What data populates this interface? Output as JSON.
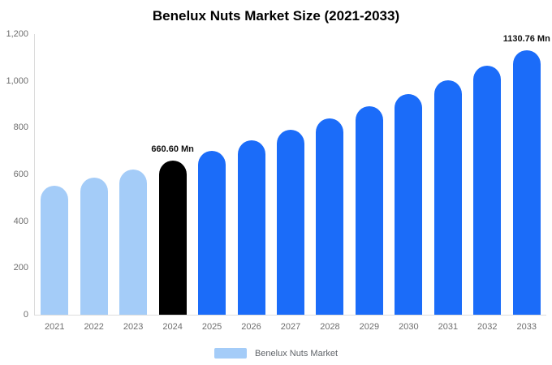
{
  "title": "Benelux Nuts Market Size (2021-2033)",
  "legend": {
    "label": "Benelux Nuts Market",
    "swatch_color": "#a4ccf8"
  },
  "colors": {
    "light_blue": "#a4ccf8",
    "blue": "#1b6cf9",
    "black": "#000000"
  },
  "chart_data": {
    "type": "bar",
    "title": "Benelux Nuts Market Size (2021-2033)",
    "categories": [
      "2021",
      "2022",
      "2023",
      "2024",
      "2025",
      "2026",
      "2027",
      "2028",
      "2029",
      "2030",
      "2031",
      "2032",
      "2033"
    ],
    "values": [
      552,
      586,
      622,
      660.6,
      701,
      744,
      790,
      839,
      890,
      945,
      1003,
      1065,
      1130.76
    ],
    "bar_colors": [
      "#a4ccf8",
      "#a4ccf8",
      "#a4ccf8",
      "#000000",
      "#1b6cf9",
      "#1b6cf9",
      "#1b6cf9",
      "#1b6cf9",
      "#1b6cf9",
      "#1b6cf9",
      "#1b6cf9",
      "#1b6cf9",
      "#1b6cf9"
    ],
    "annotations": [
      {
        "index": 3,
        "text": "660.60 Mn"
      },
      {
        "index": 12,
        "text": "1130.76 Mn"
      }
    ],
    "xlabel": "",
    "ylabel": "",
    "ylim": [
      0,
      1200
    ],
    "ytick_values": [
      0,
      200,
      400,
      600,
      800,
      1000,
      1200
    ],
    "ytick_labels": [
      "0",
      "200",
      "400",
      "600",
      "800",
      "1,000",
      "1,200"
    ],
    "grid": false,
    "legend_position": "bottom"
  }
}
